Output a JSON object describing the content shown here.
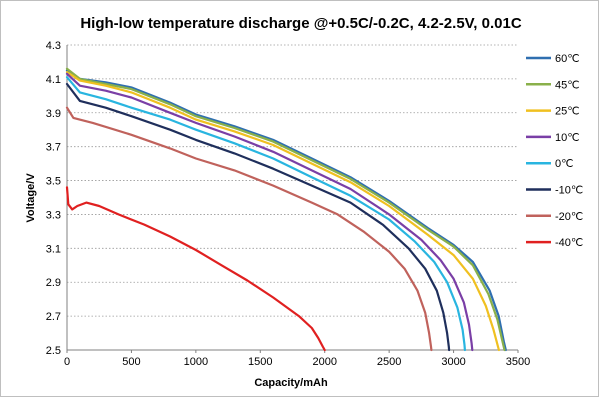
{
  "chart_data": {
    "type": "line",
    "title": "High-low temperature discharge @+0.5C/-0.2C, 4.2-2.5V, 0.01C",
    "xlabel": "Capacity/mAh",
    "ylabel": "Voltage/V",
    "xlim": [
      0,
      3500
    ],
    "ylim": [
      2.5,
      4.3
    ],
    "xticks": [
      "0",
      "500",
      "1000",
      "1500",
      "2000",
      "2500",
      "3000",
      "3500"
    ],
    "yticks": [
      "2.5",
      "2.7",
      "2.9",
      "3.1",
      "3.3",
      "3.5",
      "3.7",
      "3.9",
      "4.1",
      "4.3"
    ],
    "grid": "horizontal dotted",
    "legend_position": "right",
    "series": [
      {
        "name": "60℃",
        "color": "#2f6fb0",
        "points": [
          [
            0,
            4.15
          ],
          [
            100,
            4.1
          ],
          [
            300,
            4.08
          ],
          [
            500,
            4.05
          ],
          [
            800,
            3.96
          ],
          [
            1000,
            3.89
          ],
          [
            1300,
            3.82
          ],
          [
            1600,
            3.74
          ],
          [
            1900,
            3.63
          ],
          [
            2200,
            3.52
          ],
          [
            2500,
            3.38
          ],
          [
            2800,
            3.22
          ],
          [
            3000,
            3.12
          ],
          [
            3150,
            3.02
          ],
          [
            3280,
            2.85
          ],
          [
            3350,
            2.7
          ],
          [
            3390,
            2.55
          ],
          [
            3405,
            2.5
          ]
        ]
      },
      {
        "name": "45℃",
        "color": "#8ab04a",
        "points": [
          [
            0,
            4.16
          ],
          [
            100,
            4.1
          ],
          [
            300,
            4.07
          ],
          [
            500,
            4.04
          ],
          [
            800,
            3.95
          ],
          [
            1000,
            3.88
          ],
          [
            1300,
            3.81
          ],
          [
            1600,
            3.73
          ],
          [
            1900,
            3.62
          ],
          [
            2200,
            3.51
          ],
          [
            2500,
            3.37
          ],
          [
            2800,
            3.21
          ],
          [
            3000,
            3.11
          ],
          [
            3150,
            3.0
          ],
          [
            3270,
            2.83
          ],
          [
            3340,
            2.68
          ],
          [
            3380,
            2.55
          ],
          [
            3395,
            2.5
          ]
        ]
      },
      {
        "name": "25℃",
        "color": "#f0c020",
        "points": [
          [
            0,
            4.14
          ],
          [
            100,
            4.09
          ],
          [
            300,
            4.06
          ],
          [
            500,
            4.02
          ],
          [
            800,
            3.93
          ],
          [
            1000,
            3.86
          ],
          [
            1300,
            3.79
          ],
          [
            1600,
            3.71
          ],
          [
            1900,
            3.6
          ],
          [
            2200,
            3.49
          ],
          [
            2500,
            3.35
          ],
          [
            2800,
            3.18
          ],
          [
            3000,
            3.06
          ],
          [
            3150,
            2.92
          ],
          [
            3250,
            2.76
          ],
          [
            3310,
            2.62
          ],
          [
            3345,
            2.52
          ],
          [
            3352,
            2.5
          ]
        ]
      },
      {
        "name": "10℃",
        "color": "#7a3fa6",
        "points": [
          [
            0,
            4.13
          ],
          [
            100,
            4.06
          ],
          [
            300,
            4.03
          ],
          [
            500,
            3.99
          ],
          [
            800,
            3.9
          ],
          [
            1000,
            3.84
          ],
          [
            1300,
            3.76
          ],
          [
            1600,
            3.67
          ],
          [
            1900,
            3.56
          ],
          [
            2200,
            3.45
          ],
          [
            2500,
            3.3
          ],
          [
            2750,
            3.15
          ],
          [
            2900,
            3.03
          ],
          [
            3000,
            2.92
          ],
          [
            3080,
            2.78
          ],
          [
            3120,
            2.65
          ],
          [
            3140,
            2.54
          ],
          [
            3145,
            2.5
          ]
        ]
      },
      {
        "name": "0℃",
        "color": "#29b5e0",
        "points": [
          [
            0,
            4.11
          ],
          [
            100,
            4.02
          ],
          [
            300,
            3.98
          ],
          [
            500,
            3.93
          ],
          [
            800,
            3.86
          ],
          [
            1000,
            3.8
          ],
          [
            1300,
            3.72
          ],
          [
            1600,
            3.63
          ],
          [
            1900,
            3.52
          ],
          [
            2200,
            3.41
          ],
          [
            2500,
            3.27
          ],
          [
            2700,
            3.14
          ],
          [
            2850,
            3.02
          ],
          [
            2950,
            2.9
          ],
          [
            3030,
            2.75
          ],
          [
            3070,
            2.62
          ],
          [
            3085,
            2.53
          ],
          [
            3088,
            2.5
          ]
        ]
      },
      {
        "name": "-10℃",
        "color": "#1f2f5c",
        "points": [
          [
            0,
            4.07
          ],
          [
            100,
            3.97
          ],
          [
            300,
            3.93
          ],
          [
            500,
            3.88
          ],
          [
            800,
            3.8
          ],
          [
            1000,
            3.74
          ],
          [
            1300,
            3.66
          ],
          [
            1600,
            3.57
          ],
          [
            1900,
            3.47
          ],
          [
            2200,
            3.37
          ],
          [
            2450,
            3.24
          ],
          [
            2650,
            3.1
          ],
          [
            2780,
            2.98
          ],
          [
            2870,
            2.85
          ],
          [
            2920,
            2.72
          ],
          [
            2950,
            2.6
          ],
          [
            2963,
            2.52
          ],
          [
            2965,
            2.5
          ]
        ]
      },
      {
        "name": "-20℃",
        "color": "#c0625c",
        "points": [
          [
            0,
            3.93
          ],
          [
            50,
            3.87
          ],
          [
            200,
            3.84
          ],
          [
            500,
            3.77
          ],
          [
            800,
            3.69
          ],
          [
            1000,
            3.63
          ],
          [
            1300,
            3.56
          ],
          [
            1600,
            3.47
          ],
          [
            1900,
            3.37
          ],
          [
            2100,
            3.3
          ],
          [
            2300,
            3.2
          ],
          [
            2500,
            3.08
          ],
          [
            2620,
            2.98
          ],
          [
            2720,
            2.85
          ],
          [
            2780,
            2.72
          ],
          [
            2810,
            2.6
          ],
          [
            2825,
            2.52
          ],
          [
            2828,
            2.5
          ]
        ]
      },
      {
        "name": "-40℃",
        "color": "#e02020",
        "points": [
          [
            0,
            3.46
          ],
          [
            10,
            3.36
          ],
          [
            40,
            3.33
          ],
          [
            80,
            3.35
          ],
          [
            150,
            3.37
          ],
          [
            250,
            3.35
          ],
          [
            400,
            3.3
          ],
          [
            600,
            3.24
          ],
          [
            800,
            3.17
          ],
          [
            1000,
            3.09
          ],
          [
            1200,
            3.0
          ],
          [
            1400,
            2.91
          ],
          [
            1600,
            2.81
          ],
          [
            1800,
            2.7
          ],
          [
            1900,
            2.63
          ],
          [
            1950,
            2.57
          ],
          [
            1985,
            2.52
          ],
          [
            2000,
            2.5
          ]
        ]
      }
    ]
  }
}
